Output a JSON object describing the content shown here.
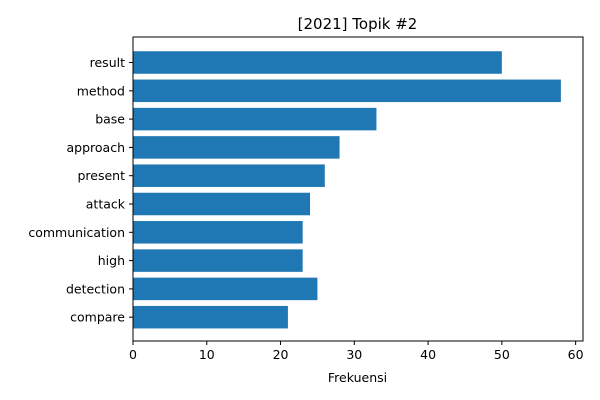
{
  "chart_data": {
    "type": "bar",
    "orientation": "horizontal",
    "title": "[2021] Topik #2",
    "xlabel": "Frekuensi",
    "ylabel": "",
    "categories": [
      "result",
      "method",
      "base",
      "approach",
      "present",
      "attack",
      "communication",
      "high",
      "detection",
      "compare"
    ],
    "values": [
      50,
      58,
      33,
      28,
      26,
      24,
      23,
      23,
      25,
      21
    ],
    "xlim": [
      0,
      61
    ],
    "xticks": [
      0,
      10,
      20,
      30,
      40,
      50,
      60
    ],
    "bar_color": "#1f77b4",
    "grid": false,
    "legend": "none"
  }
}
